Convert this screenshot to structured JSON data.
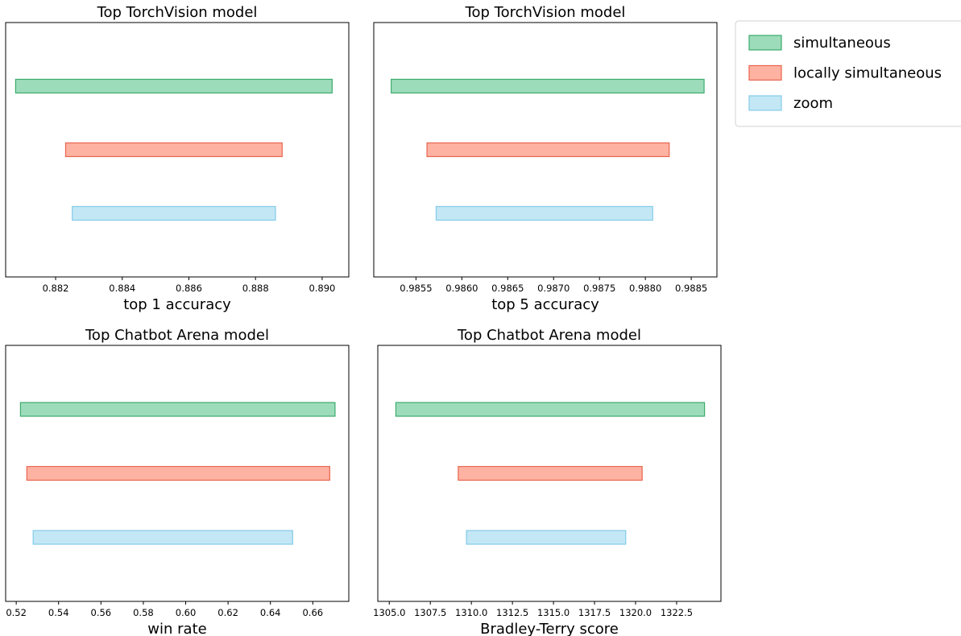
{
  "legend": {
    "entries": [
      {
        "label": "simultaneous",
        "fill": "#9ddcbb",
        "stroke": "#3cab6c"
      },
      {
        "label": "locally simultaneous",
        "fill": "#feb2a2",
        "stroke": "#e8654f"
      },
      {
        "label": "zoom",
        "fill": "#c3e7f5",
        "stroke": "#84cbe8"
      }
    ]
  },
  "chart_data": [
    {
      "type": "bar",
      "orientation": "horizontal-interval",
      "title": "Top TorchVision model",
      "xlabel": "top 1 accuracy",
      "xlim": [
        0.8805,
        0.8908
      ],
      "xticks": [
        0.882,
        0.884,
        0.886,
        0.888,
        0.89
      ],
      "tick_format": 3,
      "series": [
        {
          "name": "simultaneous",
          "low": 0.8808,
          "high": 0.8903
        },
        {
          "name": "locally simultaneous",
          "low": 0.8823,
          "high": 0.8888
        },
        {
          "name": "zoom",
          "low": 0.8825,
          "high": 0.8886
        }
      ]
    },
    {
      "type": "bar",
      "orientation": "horizontal-interval",
      "title": "Top TorchVision model",
      "xlabel": "top 5 accuracy",
      "xlim": [
        0.98504,
        0.98878
      ],
      "xticks": [
        0.9855,
        0.986,
        0.9865,
        0.987,
        0.9875,
        0.988,
        0.9885
      ],
      "tick_format": 4,
      "series": [
        {
          "name": "simultaneous",
          "low": 0.98523,
          "high": 0.98864
        },
        {
          "name": "locally simultaneous",
          "low": 0.98562,
          "high": 0.98826
        },
        {
          "name": "zoom",
          "low": 0.98572,
          "high": 0.98808
        }
      ]
    },
    {
      "type": "bar",
      "orientation": "horizontal-interval",
      "title": "Top Chatbot Arena model",
      "xlabel": "win rate",
      "xlim": [
        0.515,
        0.677
      ],
      "xticks": [
        0.52,
        0.54,
        0.56,
        0.58,
        0.6,
        0.62,
        0.64,
        0.66
      ],
      "tick_format": 2,
      "series": [
        {
          "name": "simultaneous",
          "low": 0.522,
          "high": 0.6705
        },
        {
          "name": "locally simultaneous",
          "low": 0.525,
          "high": 0.668
        },
        {
          "name": "zoom",
          "low": 0.528,
          "high": 0.6505
        }
      ]
    },
    {
      "type": "bar",
      "orientation": "horizontal-interval",
      "title": "Top Chatbot Arena model",
      "xlabel": "Bradley-Terry score",
      "xlim": [
        1304.3,
        1325.2
      ],
      "xticks": [
        1305.0,
        1307.5,
        1310.0,
        1312.5,
        1315.0,
        1317.5,
        1320.0,
        1322.5
      ],
      "tick_format": 1,
      "series": [
        {
          "name": "simultaneous",
          "low": 1305.4,
          "high": 1324.2
        },
        {
          "name": "locally simultaneous",
          "low": 1309.2,
          "high": 1320.4
        },
        {
          "name": "zoom",
          "low": 1309.7,
          "high": 1319.4
        }
      ]
    }
  ]
}
